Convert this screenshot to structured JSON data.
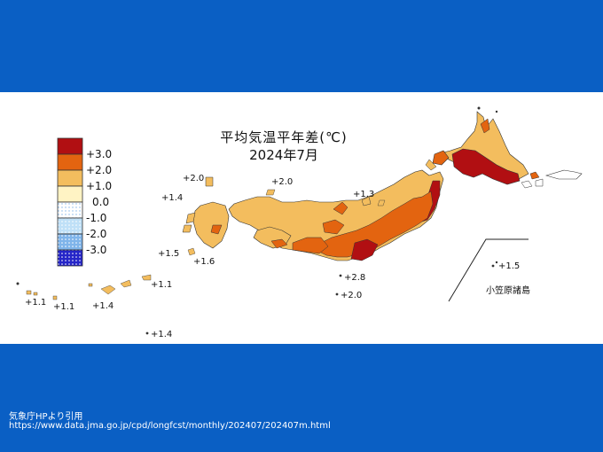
{
  "map": {
    "title_line1": "平均気温平年差(℃)",
    "title_line2": "2024年7月",
    "legend": [
      {
        "label": "+3.0",
        "color": "#b10f12",
        "pattern": "solid"
      },
      {
        "label": "+2.0",
        "color": "#e36410",
        "pattern": "solid"
      },
      {
        "label": "+1.0",
        "color": "#f3bd5e",
        "pattern": "solid"
      },
      {
        "label": "0.0",
        "color": "#fff3c4",
        "pattern": "solid"
      },
      {
        "label": "-1.0",
        "color": "#ffffff",
        "pattern": "dots-light"
      },
      {
        "label": "-2.0",
        "color": "#bfe0f7",
        "pattern": "dots"
      },
      {
        "label": "-3.0",
        "color": "#7fb4ea",
        "pattern": "dots"
      },
      {
        "label": "",
        "color": "#2525c8",
        "pattern": "dots-dense"
      }
    ],
    "point_labels": {
      "oki": "+2.0",
      "noto": "+2.0",
      "tsushima": "+1.4",
      "sado": "+1.3",
      "goto": "+1.5",
      "amakusa": "+1.6",
      "yonaguni": "+1.1",
      "ishigaki": "+1.1",
      "okinawa_c": "+1.4",
      "amami": "+1.1",
      "hachijo": "+2.8",
      "izu_south": "+2.0",
      "minamidaito": "+1.4",
      "ogasawara_val": "+1.5"
    },
    "ogasawara_label": "小笠原諸島"
  },
  "credit": {
    "source": "気象庁HPより引用",
    "url": "https://www.data.jma.go.jp/cpd/longfcst/monthly/202407/202407m.html"
  },
  "colors": {
    "band": "#0a5fc4",
    "anom_3": "#b10f12",
    "anom_2": "#e36410",
    "anom_1": "#f3bd5e"
  }
}
